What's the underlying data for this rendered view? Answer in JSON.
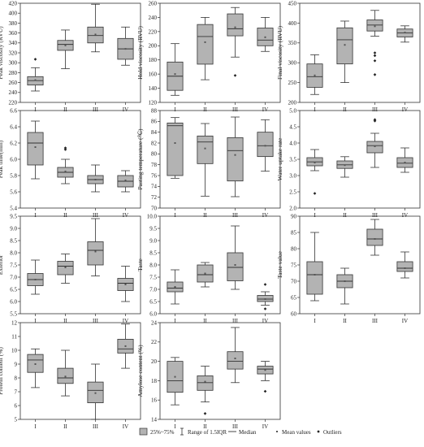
{
  "chart_data": [
    {
      "type": "boxplot",
      "ylabel": "Peak viscosity (RVU)",
      "categories": [
        "I",
        "II",
        "III",
        "IV"
      ],
      "ylim": [
        220,
        420
      ],
      "yticks": [
        220,
        240,
        260,
        280,
        300,
        320,
        340,
        360,
        380,
        400,
        420
      ],
      "boxes": [
        {
          "whisker_low": 243,
          "q1": 255,
          "median": 264,
          "q3": 272,
          "whisker_high": 290,
          "mean": 265,
          "outliers": [
            307
          ]
        },
        {
          "whisker_low": 288,
          "q1": 325,
          "median": 337,
          "q3": 345,
          "whisker_high": 366,
          "mean": 335,
          "outliers": []
        },
        {
          "whisker_low": 322,
          "q1": 340,
          "median": 355,
          "q3": 372,
          "whisker_high": 418,
          "mean": 357,
          "outliers": []
        },
        {
          "whisker_low": 295,
          "q1": 307,
          "median": 328,
          "q3": 349,
          "whisker_high": 372,
          "mean": 328,
          "outliers": []
        }
      ]
    },
    {
      "type": "boxplot",
      "ylabel": "Hold viscosity (RVU)",
      "categories": [
        "I",
        "II",
        "III",
        "IV"
      ],
      "ylim": [
        120,
        260
      ],
      "yticks": [
        120,
        140,
        160,
        180,
        200,
        220,
        240,
        260
      ],
      "boxes": [
        {
          "whisker_low": 130,
          "q1": 137,
          "median": 157,
          "q3": 177,
          "whisker_high": 203,
          "mean": 160,
          "outliers": []
        },
        {
          "whisker_low": 152,
          "q1": 174,
          "median": 213,
          "q3": 230,
          "whisker_high": 240,
          "mean": 205,
          "outliers": []
        },
        {
          "whisker_low": 184,
          "q1": 214,
          "median": 224,
          "q3": 245,
          "whisker_high": 254,
          "mean": 226,
          "outliers": [
            158
          ]
        },
        {
          "whisker_low": 192,
          "q1": 200,
          "median": 208,
          "q3": 225,
          "whisker_high": 240,
          "mean": 212,
          "outliers": []
        }
      ]
    },
    {
      "type": "boxplot",
      "ylabel": "Final viscosity (RVU)",
      "categories": [
        "I",
        "II",
        "III",
        "IV"
      ],
      "ylim": [
        200,
        450
      ],
      "yticks": [
        200,
        250,
        300,
        350,
        400,
        450
      ],
      "boxes": [
        {
          "whisker_low": 220,
          "q1": 238,
          "median": 265,
          "q3": 297,
          "whisker_high": 320,
          "mean": 268,
          "outliers": []
        },
        {
          "whisker_low": 250,
          "q1": 297,
          "median": 358,
          "q3": 388,
          "whisker_high": 405,
          "mean": 345,
          "outliers": []
        },
        {
          "whisker_low": 367,
          "q1": 380,
          "median": 395,
          "q3": 408,
          "whisker_high": 432,
          "mean": 392,
          "outliers": [
            325,
            318,
            305,
            270
          ]
        },
        {
          "whisker_low": 352,
          "q1": 365,
          "median": 375,
          "q3": 385,
          "whisker_high": 393,
          "mean": 376,
          "outliers": []
        }
      ]
    },
    {
      "type": "boxplot",
      "ylabel": "Peak time(min)",
      "categories": [
        "I",
        "II",
        "III",
        "IV"
      ],
      "ylim": [
        5.4,
        6.6
      ],
      "yticks": [
        5.4,
        5.6,
        5.8,
        6.0,
        6.2,
        6.4,
        6.6
      ],
      "boxes": [
        {
          "whisker_low": 5.76,
          "q1": 5.93,
          "median": 6.2,
          "q3": 6.33,
          "whisker_high": 6.47,
          "mean": 6.15,
          "outliers": []
        },
        {
          "whisker_low": 5.7,
          "q1": 5.78,
          "median": 5.84,
          "q3": 5.9,
          "whisker_high": 6.0,
          "mean": 5.85,
          "outliers": [
            6.12,
            6.14
          ]
        },
        {
          "whisker_low": 5.6,
          "q1": 5.7,
          "median": 5.75,
          "q3": 5.8,
          "whisker_high": 5.93,
          "mean": 5.75,
          "outliers": []
        },
        {
          "whisker_low": 5.6,
          "q1": 5.66,
          "median": 5.73,
          "q3": 5.8,
          "whisker_high": 5.86,
          "mean": 5.74,
          "outliers": []
        }
      ]
    },
    {
      "type": "boxplot",
      "ylabel": "Pasting temperature (℃)",
      "categories": [
        "I",
        "II",
        "III",
        "IV"
      ],
      "ylim": [
        70,
        88
      ],
      "yticks": [
        70,
        72,
        74,
        76,
        78,
        80,
        82,
        84,
        86,
        88
      ],
      "boxes": [
        {
          "whisker_low": 75.5,
          "q1": 76,
          "median": 85.2,
          "q3": 85.7,
          "whisker_high": 86.7,
          "mean": 82,
          "outliers": []
        },
        {
          "whisker_low": 72.2,
          "q1": 78.2,
          "median": 82.2,
          "q3": 83.3,
          "whisker_high": 85.6,
          "mean": 81,
          "outliers": []
        },
        {
          "whisker_low": 72.1,
          "q1": 75,
          "median": 80.6,
          "q3": 83,
          "whisker_high": 86.8,
          "mean": 79.8,
          "outliers": []
        },
        {
          "whisker_low": 76.8,
          "q1": 79.5,
          "median": 81.5,
          "q3": 84,
          "whisker_high": 86.3,
          "mean": 81.5,
          "outliers": []
        }
      ]
    },
    {
      "type": "boxplot",
      "ylabel": "Water uptake rate",
      "categories": [
        "I",
        "II",
        "III",
        "IV"
      ],
      "ylim": [
        2.0,
        5.0
      ],
      "yticks": [
        2.0,
        2.5,
        3.0,
        3.5,
        4.0,
        4.5,
        5.0
      ],
      "boxes": [
        {
          "whisker_low": 3.15,
          "q1": 3.3,
          "median": 3.42,
          "q3": 3.55,
          "whisker_high": 3.8,
          "mean": 3.4,
          "outliers": [
            2.45
          ]
        },
        {
          "whisker_low": 2.95,
          "q1": 3.22,
          "median": 3.33,
          "q3": 3.45,
          "whisker_high": 3.58,
          "mean": 3.32,
          "outliers": []
        },
        {
          "whisker_low": 3.25,
          "q1": 3.7,
          "median": 3.92,
          "q3": 4.05,
          "whisker_high": 4.3,
          "mean": 3.9,
          "outliers": [
            4.68,
            4.72
          ]
        },
        {
          "whisker_low": 3.1,
          "q1": 3.25,
          "median": 3.38,
          "q3": 3.55,
          "whisker_high": 3.85,
          "mean": 3.4,
          "outliers": []
        }
      ]
    },
    {
      "type": "boxplot",
      "ylabel": "Exterior",
      "categories": [
        "I",
        "II",
        "III",
        "IV"
      ],
      "ylim": [
        5.5,
        9.5
      ],
      "yticks": [
        5.5,
        6.0,
        6.5,
        7.0,
        7.5,
        8.0,
        8.5,
        9.0,
        9.5
      ],
      "boxes": [
        {
          "whisker_low": 6.3,
          "q1": 6.65,
          "median": 6.9,
          "q3": 7.15,
          "whisker_high": 7.7,
          "mean": 6.9,
          "outliers": []
        },
        {
          "whisker_low": 6.75,
          "q1": 7.1,
          "median": 7.45,
          "q3": 7.65,
          "whisker_high": 7.95,
          "mean": 7.4,
          "outliers": []
        },
        {
          "whisker_low": 7.05,
          "q1": 7.5,
          "median": 8.1,
          "q3": 8.45,
          "whisker_high": 9.4,
          "mean": 8.05,
          "outliers": []
        },
        {
          "whisker_low": 6.0,
          "q1": 6.45,
          "median": 6.75,
          "q3": 6.95,
          "whisker_high": 7.45,
          "mean": 6.7,
          "outliers": []
        }
      ]
    },
    {
      "type": "boxplot",
      "ylabel": "Taste",
      "categories": [
        "I",
        "II",
        "III",
        "IV"
      ],
      "ylim": [
        6.0,
        10.0
      ],
      "yticks": [
        6.0,
        6.5,
        7.0,
        7.5,
        8.0,
        8.5,
        9.0,
        9.5,
        10.0
      ],
      "boxes": [
        {
          "whisker_low": 6.4,
          "q1": 6.9,
          "median": 7.05,
          "q3": 7.3,
          "whisker_high": 7.8,
          "mean": 7.1,
          "outliers": []
        },
        {
          "whisker_low": 7.1,
          "q1": 7.3,
          "median": 7.6,
          "q3": 8.0,
          "whisker_high": 8.1,
          "mean": 7.65,
          "outliers": []
        },
        {
          "whisker_low": 7.0,
          "q1": 7.35,
          "median": 7.9,
          "q3": 8.5,
          "whisker_high": 9.6,
          "mean": 8.0,
          "outliers": []
        },
        {
          "whisker_low": 6.35,
          "q1": 6.5,
          "median": 6.6,
          "q3": 6.75,
          "whisker_high": 6.9,
          "mean": 6.6,
          "outliers": [
            7.2,
            6.2
          ]
        }
      ]
    },
    {
      "type": "boxplot",
      "ylabel": "Taste value",
      "categories": [
        "I",
        "II",
        "III",
        "IV"
      ],
      "ylim": [
        60,
        90
      ],
      "yticks": [
        60,
        65,
        70,
        75,
        80,
        85,
        90
      ],
      "boxes": [
        {
          "whisker_low": 64,
          "q1": 66,
          "median": 72,
          "q3": 76,
          "whisker_high": 85,
          "mean": 72,
          "outliers": []
        },
        {
          "whisker_low": 63,
          "q1": 68,
          "median": 70,
          "q3": 72,
          "whisker_high": 74,
          "mean": 70,
          "outliers": []
        },
        {
          "whisker_low": 78,
          "q1": 81,
          "median": 83,
          "q3": 86,
          "whisker_high": 89,
          "mean": 83,
          "outliers": []
        },
        {
          "whisker_low": 71,
          "q1": 73,
          "median": 74,
          "q3": 76,
          "whisker_high": 79,
          "mean": 74,
          "outliers": []
        }
      ]
    },
    {
      "type": "boxplot",
      "ylabel": "Protein content (%)",
      "categories": [
        "I",
        "II",
        "III",
        "IV"
      ],
      "ylim": [
        5,
        12
      ],
      "yticks": [
        5,
        6,
        7,
        8,
        9,
        10,
        11,
        12
      ],
      "boxes": [
        {
          "whisker_low": 7.3,
          "q1": 8.4,
          "median": 9.3,
          "q3": 9.7,
          "whisker_high": 10.1,
          "mean": 9.0,
          "outliers": []
        },
        {
          "whisker_low": 6.7,
          "q1": 7.6,
          "median": 8.0,
          "q3": 8.7,
          "whisker_high": 10.0,
          "mean": 8.1,
          "outliers": []
        },
        {
          "whisker_low": 5.0,
          "q1": 6.2,
          "median": 7.1,
          "q3": 7.7,
          "whisker_high": 9.0,
          "mean": 6.9,
          "outliers": []
        },
        {
          "whisker_low": 8.7,
          "q1": 9.8,
          "median": 10.1,
          "q3": 10.8,
          "whisker_high": 11.9,
          "mean": 10.3,
          "outliers": []
        }
      ]
    },
    {
      "type": "boxplot",
      "ylabel": "Amylose content (%)",
      "categories": [
        "I",
        "II",
        "III",
        "IV"
      ],
      "ylim": [
        14,
        24
      ],
      "yticks": [
        14,
        16,
        18,
        20,
        22,
        24
      ],
      "boxes": [
        {
          "whisker_low": 15.5,
          "q1": 16.8,
          "median": 18.0,
          "q3": 20.0,
          "whisker_high": 20.4,
          "mean": 18.4,
          "outliers": []
        },
        {
          "whisker_low": 15.8,
          "q1": 17.0,
          "median": 17.8,
          "q3": 18.5,
          "whisker_high": 19.5,
          "mean": 17.9,
          "outliers": [
            14.6
          ]
        },
        {
          "whisker_low": 17.8,
          "q1": 19.2,
          "median": 20.0,
          "q3": 21.0,
          "whisker_high": 23.5,
          "mean": 20.3,
          "outliers": []
        },
        {
          "whisker_low": 18.0,
          "q1": 18.7,
          "median": 19.2,
          "q3": 19.5,
          "whisker_high": 20.0,
          "mean": 19.1,
          "outliers": [
            16.9
          ]
        }
      ]
    }
  ],
  "legend": {
    "box": "25%~75%",
    "range": "Range of 1.5IQR",
    "median": "Median",
    "mean": "Mean values",
    "outliers": "Outliers"
  },
  "colors": {
    "box_fill": "#b3b3b3",
    "stroke": "#333333",
    "mean_marker": "#555555"
  }
}
